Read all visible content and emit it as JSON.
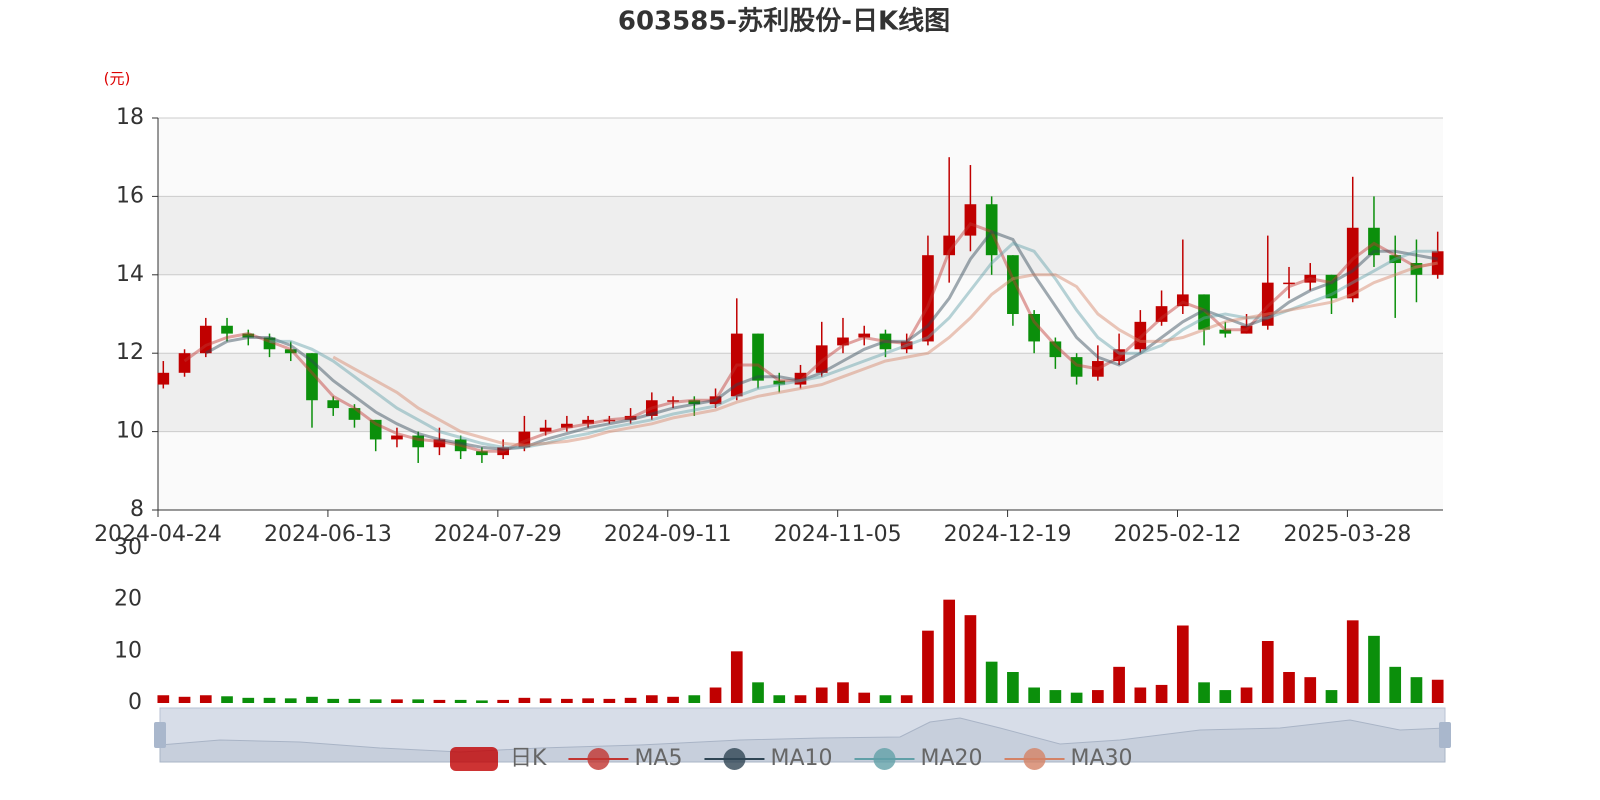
{
  "chart_data": {
    "type": "candlestick",
    "title": "603585-苏利股份-日K线图",
    "y_label": "(元)",
    "up_color": "#c00000",
    "down_color": "#0b8f0b",
    "grid": true,
    "categories": [
      "2024-04-24",
      null,
      null,
      null,
      null,
      null,
      null,
      null,
      "2024-06-13",
      null,
      null,
      null,
      null,
      null,
      null,
      null,
      "2024-07-29",
      null,
      null,
      null,
      null,
      null,
      null,
      null,
      "2024-09-11",
      null,
      null,
      null,
      null,
      null,
      null,
      null,
      "2024-11-05",
      null,
      null,
      null,
      null,
      null,
      null,
      null,
      "2024-12-19",
      null,
      null,
      null,
      null,
      null,
      null,
      null,
      "2025-02-12",
      null,
      null,
      null,
      null,
      null,
      null,
      null,
      "2025-03-28",
      null,
      null,
      null,
      null
    ],
    "ylim": [
      8,
      18
    ],
    "yticks": [
      8,
      10,
      12,
      14,
      16,
      18
    ],
    "series": [
      {
        "name": "日K",
        "color": "#c00000",
        "values": [
          [
            11.2,
            11.5,
            11.1,
            11.8
          ],
          [
            11.5,
            12.0,
            11.4,
            12.1
          ],
          [
            12.0,
            12.7,
            11.9,
            12.9
          ],
          [
            12.7,
            12.5,
            12.3,
            12.9
          ],
          [
            12.5,
            12.4,
            12.2,
            12.6
          ],
          [
            12.4,
            12.1,
            11.9,
            12.5
          ],
          [
            12.1,
            12.0,
            11.8,
            12.3
          ],
          [
            12.0,
            10.8,
            10.1,
            12.0
          ],
          [
            10.8,
            10.6,
            10.4,
            10.9
          ],
          [
            10.6,
            10.3,
            10.1,
            10.7
          ],
          [
            10.3,
            9.8,
            9.5,
            10.3
          ],
          [
            9.8,
            9.9,
            9.6,
            10.1
          ],
          [
            9.9,
            9.6,
            9.2,
            10.0
          ],
          [
            9.6,
            9.8,
            9.4,
            10.1
          ],
          [
            9.8,
            9.5,
            9.3,
            9.9
          ],
          [
            9.5,
            9.4,
            9.2,
            9.6
          ],
          [
            9.4,
            9.6,
            9.3,
            9.8
          ],
          [
            9.6,
            10.0,
            9.5,
            10.4
          ],
          [
            10.0,
            10.1,
            9.9,
            10.3
          ],
          [
            10.1,
            10.2,
            10.0,
            10.4
          ],
          [
            10.2,
            10.3,
            10.1,
            10.4
          ],
          [
            10.3,
            10.3,
            10.2,
            10.4
          ],
          [
            10.3,
            10.4,
            10.2,
            10.6
          ],
          [
            10.4,
            10.8,
            10.3,
            11.0
          ],
          [
            10.8,
            10.8,
            10.6,
            10.9
          ],
          [
            10.8,
            10.7,
            10.4,
            10.9
          ],
          [
            10.7,
            10.9,
            10.6,
            11.1
          ],
          [
            10.9,
            12.5,
            10.8,
            13.4
          ],
          [
            12.5,
            11.3,
            11.1,
            12.5
          ],
          [
            11.3,
            11.2,
            11.0,
            11.5
          ],
          [
            11.2,
            11.5,
            11.1,
            11.7
          ],
          [
            11.5,
            12.2,
            11.4,
            12.8
          ],
          [
            12.2,
            12.4,
            12.0,
            12.9
          ],
          [
            12.4,
            12.5,
            12.2,
            12.7
          ],
          [
            12.5,
            12.1,
            11.9,
            12.6
          ],
          [
            12.1,
            12.3,
            12.0,
            12.5
          ],
          [
            12.3,
            14.5,
            12.2,
            15.0
          ],
          [
            14.5,
            15.0,
            13.8,
            17.0
          ],
          [
            15.0,
            15.8,
            14.6,
            16.8
          ],
          [
            15.8,
            14.5,
            14.0,
            16.0
          ],
          [
            14.5,
            13.0,
            12.7,
            14.5
          ],
          [
            13.0,
            12.3,
            12.0,
            13.1
          ],
          [
            12.3,
            11.9,
            11.6,
            12.4
          ],
          [
            11.9,
            11.4,
            11.2,
            12.0
          ],
          [
            11.4,
            11.8,
            11.3,
            12.2
          ],
          [
            11.8,
            12.1,
            11.7,
            12.5
          ],
          [
            12.1,
            12.8,
            12.0,
            13.1
          ],
          [
            12.8,
            13.2,
            12.7,
            13.6
          ],
          [
            13.2,
            13.5,
            13.0,
            14.9
          ],
          [
            13.5,
            12.6,
            12.2,
            13.5
          ],
          [
            12.6,
            12.5,
            12.4,
            12.8
          ],
          [
            12.5,
            12.7,
            12.5,
            13.0
          ],
          [
            12.7,
            13.8,
            12.6,
            15.0
          ],
          [
            13.8,
            13.8,
            13.4,
            14.2
          ],
          [
            13.8,
            14.0,
            13.6,
            14.3
          ],
          [
            14.0,
            13.4,
            13.0,
            14.0
          ],
          [
            13.4,
            15.2,
            13.3,
            16.5
          ],
          [
            15.2,
            14.5,
            14.2,
            16.0
          ],
          [
            14.5,
            14.3,
            12.9,
            15.0
          ],
          [
            14.3,
            14.0,
            13.3,
            14.9
          ],
          [
            14.0,
            14.6,
            13.9,
            15.1
          ]
        ]
      },
      {
        "name": "MA5",
        "color": "#c23531",
        "values": [
          null,
          11.8,
          12.2,
          12.4,
          12.5,
          12.3,
          12.1,
          11.5,
          10.9,
          10.6,
          10.2,
          9.95,
          9.8,
          9.75,
          9.65,
          9.5,
          9.5,
          9.75,
          9.95,
          10.1,
          10.2,
          10.3,
          10.35,
          10.6,
          10.75,
          10.8,
          10.8,
          11.7,
          11.7,
          11.3,
          11.3,
          11.8,
          12.2,
          12.4,
          12.3,
          12.25,
          13.2,
          14.6,
          15.3,
          15.1,
          13.9,
          12.8,
          12.2,
          11.7,
          11.6,
          11.9,
          12.4,
          12.9,
          13.3,
          13.1,
          12.6,
          12.6,
          13.2,
          13.7,
          13.9,
          13.8,
          14.4,
          14.8,
          14.5,
          14.2,
          14.3
        ]
      },
      {
        "name": "MA10",
        "color": "#2f4554",
        "values": [
          null,
          null,
          12.0,
          12.3,
          12.4,
          12.4,
          12.2,
          11.8,
          11.3,
          10.9,
          10.5,
          10.2,
          9.95,
          9.8,
          9.7,
          9.6,
          9.55,
          9.6,
          9.8,
          9.95,
          10.1,
          10.2,
          10.3,
          10.45,
          10.6,
          10.7,
          10.8,
          11.2,
          11.4,
          11.4,
          11.3,
          11.5,
          11.8,
          12.1,
          12.3,
          12.3,
          12.7,
          13.4,
          14.4,
          15.1,
          14.9,
          14.0,
          13.2,
          12.4,
          11.9,
          11.7,
          12.0,
          12.4,
          12.8,
          13.1,
          12.9,
          12.7,
          12.9,
          13.3,
          13.6,
          13.8,
          14.1,
          14.6,
          14.6,
          14.5,
          14.4
        ]
      },
      {
        "name": "MA20",
        "color": "#61a0a8",
        "values": [
          null,
          null,
          null,
          null,
          null,
          12.3,
          12.3,
          12.1,
          11.8,
          11.4,
          11.0,
          10.6,
          10.3,
          10.0,
          9.85,
          9.7,
          9.6,
          9.6,
          9.7,
          9.85,
          9.95,
          10.1,
          10.2,
          10.3,
          10.45,
          10.55,
          10.65,
          10.9,
          11.1,
          11.2,
          11.3,
          11.4,
          11.6,
          11.8,
          12.0,
          12.2,
          12.4,
          12.9,
          13.6,
          14.3,
          14.8,
          14.6,
          13.9,
          13.1,
          12.4,
          12.0,
          12.0,
          12.2,
          12.6,
          12.9,
          13.0,
          12.9,
          12.9,
          13.1,
          13.3,
          13.5,
          13.8,
          14.1,
          14.4,
          14.6,
          14.6
        ]
      },
      {
        "name": "MA30",
        "color": "#d48265",
        "values": [
          null,
          null,
          null,
          null,
          null,
          null,
          null,
          null,
          11.9,
          11.6,
          11.3,
          11.0,
          10.6,
          10.3,
          10.0,
          9.85,
          9.7,
          9.65,
          9.7,
          9.75,
          9.85,
          10.0,
          10.1,
          10.2,
          10.35,
          10.45,
          10.55,
          10.75,
          10.9,
          11.0,
          11.1,
          11.2,
          11.4,
          11.6,
          11.8,
          11.9,
          12.0,
          12.4,
          12.9,
          13.5,
          13.9,
          14.0,
          14.0,
          13.7,
          13.0,
          12.6,
          12.3,
          12.3,
          12.4,
          12.6,
          12.8,
          12.9,
          13.0,
          13.1,
          13.2,
          13.3,
          13.5,
          13.8,
          14.0,
          14.2,
          14.3
        ]
      }
    ],
    "volume": {
      "ylim": [
        0,
        30
      ],
      "yticks": [
        0,
        10,
        20,
        30
      ],
      "values": [
        1.5,
        1.2,
        1.5,
        1.3,
        1.0,
        1.0,
        0.9,
        1.2,
        0.8,
        0.8,
        0.7,
        0.7,
        0.7,
        0.6,
        0.6,
        0.5,
        0.6,
        1.0,
        0.9,
        0.8,
        0.9,
        0.8,
        1.0,
        1.5,
        1.2,
        1.5,
        3.0,
        10.0,
        4.0,
        1.5,
        1.5,
        3.0,
        4.0,
        2.0,
        1.5,
        1.5,
        14.0,
        20.0,
        17.0,
        8.0,
        6.0,
        3.0,
        2.5,
        2.0,
        2.5,
        7.0,
        3.0,
        3.5,
        15.0,
        4.0,
        2.5,
        3.0,
        12.0,
        6.0,
        5.0,
        2.5,
        16.0,
        13.0,
        7.0,
        5.0,
        4.5
      ]
    }
  }
}
